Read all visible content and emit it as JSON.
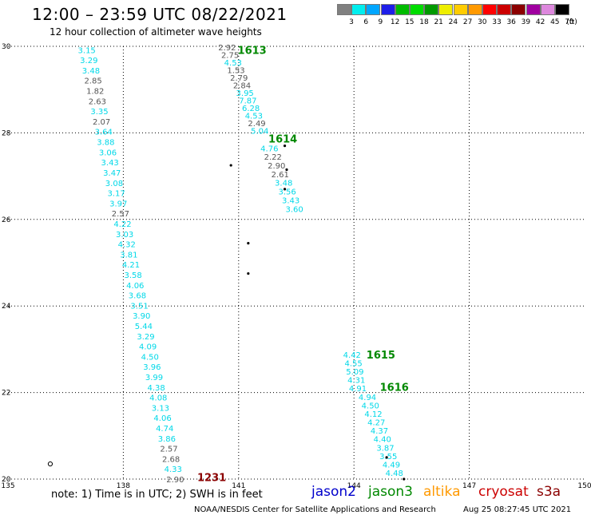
{
  "header": {
    "title": "12:00 – 23:59 UTC 08/22/2021",
    "subtitle": "12 hour collection of altimeter wave heights"
  },
  "scale": {
    "colors": [
      "#808080",
      "#00eeee",
      "#00a6ff",
      "#1e1ee8",
      "#00bb00",
      "#00dd00",
      "#009900",
      "#eeee00",
      "#ffcc00",
      "#ff9900",
      "#ff0000",
      "#cc0000",
      "#8b0000",
      "#a000a0",
      "#dd88dd",
      "#000000"
    ],
    "labels": [
      "3",
      "6",
      "9",
      "12",
      "15",
      "18",
      "21",
      "24",
      "27",
      "30",
      "33",
      "36",
      "39",
      "42",
      "45",
      "70"
    ],
    "unit": "(ft)"
  },
  "chart_data": {
    "type": "scatter",
    "title": "12:00 – 23:59 UTC 08/22/2021",
    "subtitle": "12 hour collection of altimeter wave heights",
    "x_label": "",
    "y_label": "",
    "xlim": [
      135,
      150
    ],
    "ylim": [
      20,
      30
    ],
    "x_ticks": [
      "135",
      "138",
      "141",
      "144",
      "147",
      "150"
    ],
    "y_ticks": [
      "20",
      "22",
      "24",
      "26",
      "28",
      "30"
    ],
    "grid": "dotted",
    "color_rule": {
      "gray_max": 3.0,
      "gray": "#555555",
      "cyan": "#00d8e8"
    },
    "tracks": [
      {
        "label": "1231",
        "label_x": 140.3,
        "label_y": 20.05,
        "label_color": "#8b0000",
        "start": [
          137.05,
          29.92
        ],
        "end": [
          139.35,
          20.0
        ],
        "values": [
          "3.15",
          "3.29",
          "3.48",
          "2.85",
          "1.82",
          "2.63",
          "3.35",
          "2.07",
          "3.64",
          "3.88",
          "3.06",
          "3.43",
          "3.47",
          "3.08",
          "3.17",
          "3.97",
          "2.57",
          "4.22",
          "3.03",
          "4.32",
          "3.81",
          "4.21",
          "3.58",
          "4.06",
          "3.68",
          "3.51",
          "3.90",
          "5.44",
          "3.29",
          "4.09",
          "4.50",
          "3.96",
          "3.99",
          "4.38",
          "4.08",
          "3.13",
          "4.06",
          "4.74",
          "3.86",
          "2.57",
          "2.68",
          "4.33",
          "2.90"
        ]
      },
      {
        "label": "1613",
        "label_x": 141.35,
        "label_y": 29.92,
        "label_color": "#008800",
        "start": [
          140.7,
          29.98
        ],
        "end": [
          141.55,
          28.05
        ],
        "values": [
          "2.92",
          "2.75",
          "4.53",
          "1.53",
          "2.79",
          "2.84",
          "3.95",
          "7.87",
          "6.28",
          "4.53",
          "2.49",
          "5.04"
        ]
      },
      {
        "label": "1614",
        "label_x": 142.15,
        "label_y": 27.87,
        "label_color": "#008800",
        "start": [
          141.8,
          27.65
        ],
        "end": [
          142.45,
          26.25
        ],
        "values": [
          "4.76",
          "2.22",
          "2.90",
          "2.61",
          "3.48",
          "3.56",
          "3.43",
          "3.60"
        ]
      },
      {
        "label": "1615",
        "label_x": 144.7,
        "label_y": 22.88,
        "label_color": "#008800",
        "start": [
          143.95,
          22.88
        ],
        "end": [
          144.1,
          22.1
        ],
        "values": [
          "4.42",
          "4.55",
          "5.09",
          "4.31",
          "4.91"
        ]
      },
      {
        "label": "1616",
        "label_x": 145.05,
        "label_y": 22.13,
        "label_color": "#008800",
        "start": [
          144.35,
          21.9
        ],
        "end": [
          145.05,
          20.15
        ],
        "values": [
          "4.94",
          "4.50",
          "4.12",
          "4.27",
          "4.37",
          "4.40",
          "3.87",
          "3.55",
          "4.49",
          "4.48"
        ]
      }
    ],
    "markers": [
      {
        "x": 140.8,
        "y": 27.25
      },
      {
        "x": 142.2,
        "y": 27.7
      },
      {
        "x": 142.25,
        "y": 27.15
      },
      {
        "x": 142.2,
        "y": 26.7
      },
      {
        "x": 141.25,
        "y": 25.45
      },
      {
        "x": 141.25,
        "y": 24.75
      },
      {
        "x": 144.85,
        "y": 20.5
      },
      {
        "x": 145.3,
        "y": 20.0
      }
    ],
    "circle": {
      "x": 136.1,
      "y": 20.35
    }
  },
  "footer": {
    "note": "note: 1) Time is in UTC; 2) SWH is in feet",
    "satellites": [
      {
        "name": "jason2",
        "color": "#0000cc"
      },
      {
        "name": "jason3",
        "color": "#008800"
      },
      {
        "name": "altika",
        "color": "#ff9900"
      },
      {
        "name": "cryosat",
        "color": "#cc0000"
      },
      {
        "name": "s3a",
        "color": "#8b0000"
      }
    ],
    "credit": "NOAA/NESDIS Center for Satellite Applications and Research",
    "stamp": "Aug 25 08:27:45 UTC 2021"
  }
}
